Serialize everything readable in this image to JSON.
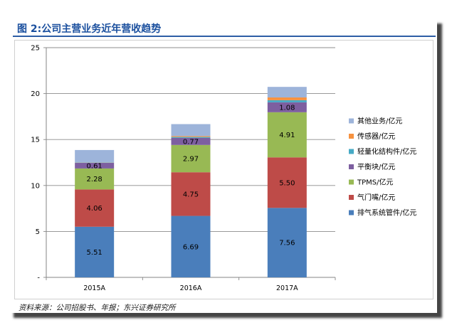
{
  "chart_data": {
    "type": "bar",
    "stacked": true,
    "title": "图 2:公司主营业务近年营收趋势",
    "xlabel": "",
    "ylabel": "",
    "categories": [
      "2015A",
      "2016A",
      "2017A"
    ],
    "ylim": [
      0,
      25
    ],
    "yticks": [
      0,
      5,
      10,
      15,
      20,
      25
    ],
    "ytick_labels": [
      "-",
      "5",
      "10",
      "15",
      "20",
      "25"
    ],
    "grid": true,
    "legend": "right",
    "series": [
      {
        "name": "排气系统管件/亿元",
        "color": "#4A7EBB",
        "values": [
          5.51,
          6.69,
          7.56
        ],
        "data_labels": true
      },
      {
        "name": "气门嘴/亿元",
        "color": "#BE4B48",
        "values": [
          4.06,
          4.75,
          5.5
        ],
        "data_labels": true
      },
      {
        "name": "TPMS/亿元",
        "color": "#98B954",
        "values": [
          2.28,
          2.97,
          4.91
        ],
        "data_labels": true
      },
      {
        "name": "平衡块/亿元",
        "color": "#7D5FA0",
        "values": [
          0.61,
          0.77,
          1.08
        ],
        "data_labels": true
      },
      {
        "name": "轻量化结构件/亿元",
        "color": "#46AAC5",
        "values": [
          0.03,
          0.1,
          0.23
        ],
        "data_labels": false
      },
      {
        "name": "传感器/亿元",
        "color": "#F69240",
        "values": [
          0.02,
          0.1,
          0.3
        ],
        "data_labels": false
      },
      {
        "name": "其他业务/亿元",
        "color": "#9DB4DA",
        "values": [
          1.35,
          1.3,
          1.15
        ],
        "data_labels": false
      }
    ]
  },
  "source_note": "资料来源：公司招股书、年报；东兴证券研究所"
}
